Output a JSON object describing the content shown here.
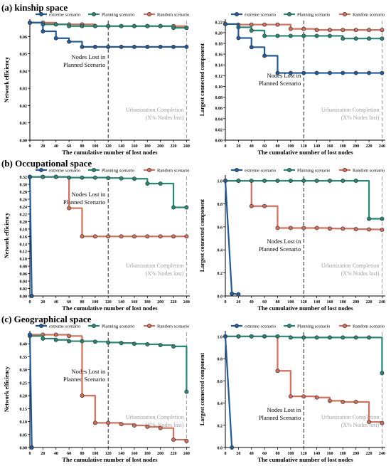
{
  "sections": [
    {
      "title": "(a) kinship space"
    },
    {
      "title": "(b) Occupational space"
    },
    {
      "title": "(c) Geographical space"
    }
  ],
  "colors": {
    "extreme": "#1f5a9e",
    "planning": "#238b72",
    "random": "#d86d5a"
  },
  "chart_data": [
    {
      "type": "line",
      "id": "a-left",
      "xlabel": "The cumulative number of lost nodes",
      "ylabel": "Network efficiency",
      "xlim": [
        0,
        245
      ],
      "ylim": [
        0,
        0.07
      ],
      "xticks": [
        0,
        20,
        40,
        60,
        80,
        100,
        120,
        140,
        160,
        180,
        200,
        220,
        240
      ],
      "yticks": [
        0,
        0.01,
        0.02,
        0.03,
        0.04,
        0.05,
        0.06
      ],
      "ytick_labels": [
        "0.00",
        "0.01",
        "0.02",
        "0.03",
        "0.04",
        "0.05",
        "0.06"
      ],
      "legend": [
        "extreme scenario",
        "Planning scenario",
        "Random scenario"
      ],
      "vline1": 120,
      "vline2": 240,
      "annotation1": [
        "Nodes Lost in",
        "Planned Scenario"
      ],
      "annotation2": [
        "Urbanization Completion",
        "(X% Nodes lost)"
      ],
      "series": [
        {
          "name": "extreme scenario",
          "key": "extreme",
          "x": [
            0,
            20,
            40,
            60,
            80,
            100,
            120,
            140,
            160,
            180,
            200,
            220,
            240
          ],
          "y": [
            0.068,
            0.063,
            0.059,
            0.057,
            0.054,
            0.054,
            0.054,
            0.054,
            0.054,
            0.054,
            0.054,
            0.054,
            0.054
          ]
        },
        {
          "name": "Planning scenario",
          "key": "planning",
          "x": [
            0,
            20,
            40,
            60,
            80,
            100,
            120,
            140,
            160,
            180,
            200,
            220,
            240
          ],
          "y": [
            0.068,
            0.067,
            0.067,
            0.066,
            0.066,
            0.066,
            0.066,
            0.066,
            0.066,
            0.066,
            0.066,
            0.065,
            0.065
          ]
        },
        {
          "name": "Random scenario",
          "key": "random",
          "x": [
            0,
            20,
            40,
            60,
            80,
            100,
            120,
            140,
            160,
            180,
            200,
            220,
            240
          ],
          "y": [
            0.068,
            0.068,
            0.067,
            0.067,
            0.067,
            0.066,
            0.066,
            0.066,
            0.066,
            0.066,
            0.066,
            0.066,
            0.065
          ]
        }
      ]
    },
    {
      "type": "line",
      "id": "a-right",
      "xlabel": "The cumulative number of lost nodes",
      "ylabel": "Largest connected component",
      "xlim": [
        0,
        245
      ],
      "ylim": [
        0,
        0.225
      ],
      "xticks": [
        0,
        20,
        40,
        60,
        80,
        100,
        120,
        140,
        160,
        180,
        200,
        220,
        240
      ],
      "yticks": [
        0,
        0.02,
        0.04,
        0.06,
        0.08,
        0.1,
        0.12,
        0.14,
        0.16,
        0.18,
        0.2,
        0.22
      ],
      "ytick_labels": [
        "0.00",
        "0.02",
        "0.04",
        "0.06",
        "0.08",
        "0.10",
        "0.12",
        "0.14",
        "0.16",
        "0.18",
        "0.20",
        "0.22"
      ],
      "legend": [
        "extreme scenario",
        "Planning scenario",
        "Random scenario"
      ],
      "vline1": 120,
      "vline2": 240,
      "annotation1": [
        "Nodes Lost in",
        "Planned Scenario"
      ],
      "annotation2": [
        "Urbanization Completion",
        "(X% Nodes lost)"
      ],
      "series": [
        {
          "name": "extreme scenario",
          "key": "extreme",
          "x": [
            0,
            20,
            40,
            60,
            80,
            100,
            120,
            140,
            160,
            180,
            200,
            220,
            240
          ],
          "y": [
            0.216,
            0.19,
            0.173,
            0.157,
            0.125,
            0.125,
            0.125,
            0.125,
            0.125,
            0.125,
            0.125,
            0.125,
            0.125
          ]
        },
        {
          "name": "Planning scenario",
          "key": "planning",
          "x": [
            0,
            20,
            40,
            60,
            80,
            100,
            120,
            140,
            160,
            180,
            200,
            220,
            240
          ],
          "y": [
            0.216,
            0.21,
            0.204,
            0.194,
            0.194,
            0.194,
            0.194,
            0.194,
            0.194,
            0.189,
            0.189,
            0.189,
            0.189
          ]
        },
        {
          "name": "Random scenario",
          "key": "random",
          "x": [
            0,
            20,
            40,
            60,
            80,
            100,
            120,
            140,
            160,
            180,
            200,
            220,
            240
          ],
          "y": [
            0.216,
            0.215,
            0.215,
            0.215,
            0.215,
            0.207,
            0.207,
            0.205,
            0.205,
            0.205,
            0.205,
            0.205,
            0.205
          ]
        }
      ]
    },
    {
      "type": "line",
      "id": "b-left",
      "xlabel": "The cumulative number of lost nodes",
      "ylabel": "Network efficiency",
      "xlim": [
        0,
        245
      ],
      "ylim": [
        0,
        0.325
      ],
      "xticks": [
        0,
        20,
        40,
        60,
        80,
        100,
        120,
        140,
        160,
        180,
        200,
        220,
        240
      ],
      "yticks": [
        0,
        0.02,
        0.04,
        0.06,
        0.08,
        0.1,
        0.12,
        0.14,
        0.16,
        0.18,
        0.2,
        0.22,
        0.24,
        0.26,
        0.28,
        0.3,
        0.32
      ],
      "ytick_labels": [
        "0.00",
        "0.02",
        "0.04",
        "0.06",
        "0.08",
        "0.10",
        "0.12",
        "0.14",
        "0.16",
        "0.18",
        "0.20",
        "0.22",
        "0.24",
        "0.26",
        "0.28",
        "0.30",
        "0.32"
      ],
      "legend": [
        "extreme scenario",
        "Planning scenario",
        "Random scenario"
      ],
      "vline1": 120,
      "vline2": 240,
      "annotation1": [
        "Nodes Lost in",
        "Planned Scenario"
      ],
      "annotation2": [
        "Urbanization Completion",
        "(X% Nodes lost)"
      ],
      "series": [
        {
          "name": "extreme scenario",
          "key": "extreme",
          "x": [
            0,
            3
          ],
          "y": [
            0.32,
            0.0
          ]
        },
        {
          "name": "Planning scenario",
          "key": "planning",
          "x": [
            0,
            20,
            40,
            60,
            80,
            100,
            120,
            140,
            160,
            180,
            200,
            220,
            240
          ],
          "y": [
            0.32,
            0.32,
            0.32,
            0.318,
            0.318,
            0.318,
            0.317,
            0.316,
            0.315,
            0.302,
            0.302,
            0.238,
            0.238
          ]
        },
        {
          "name": "Random scenario",
          "key": "random",
          "x": [
            0,
            20,
            40,
            60,
            80,
            100,
            120,
            140,
            160,
            180,
            200,
            220,
            240
          ],
          "y": [
            0.32,
            0.32,
            0.32,
            0.236,
            0.16,
            0.16,
            0.16,
            0.16,
            0.16,
            0.16,
            0.16,
            0.16,
            0.16
          ]
        }
      ]
    },
    {
      "type": "line",
      "id": "b-right",
      "xlabel": "The cumulative number of lost nodes",
      "ylabel": "Largest connected component",
      "xlim": [
        0,
        245
      ],
      "ylim": [
        0,
        1.05
      ],
      "xticks": [
        0,
        20,
        40,
        60,
        80,
        100,
        120,
        140,
        160,
        180,
        200,
        220,
        240
      ],
      "yticks": [
        0,
        0.2,
        0.4,
        0.6,
        0.8,
        1.0
      ],
      "ytick_labels": [
        "0.0",
        "0.2",
        "0.4",
        "0.6",
        "0.8",
        "1.0"
      ],
      "legend": [
        "extreme scenario",
        "Planning scenario",
        "Random scenario"
      ],
      "vline1": 120,
      "vline2": 240,
      "annotation1": [
        "Nodes Lost in",
        "Planned Scenario"
      ],
      "annotation2": [
        "Urbanization Completion",
        "(X% Nodes lost)"
      ],
      "series": [
        {
          "name": "extreme scenario",
          "key": "extreme",
          "x": [
            0,
            10,
            20
          ],
          "y": [
            1.0,
            0.02,
            0.015
          ]
        },
        {
          "name": "Planning scenario",
          "key": "planning",
          "x": [
            0,
            20,
            40,
            60,
            80,
            100,
            120,
            140,
            160,
            180,
            200,
            220,
            240
          ],
          "y": [
            1.0,
            1.0,
            1.0,
            1.0,
            1.0,
            1.0,
            1.0,
            1.0,
            1.0,
            1.0,
            1.0,
            0.67,
            0.67
          ]
        },
        {
          "name": "Random scenario",
          "key": "random",
          "x": [
            0,
            20,
            40,
            60,
            80,
            100,
            120,
            140,
            160,
            180,
            200,
            220,
            240
          ],
          "y": [
            1.0,
            1.0,
            0.78,
            0.78,
            0.59,
            0.59,
            0.59,
            0.59,
            0.585,
            0.585,
            0.58,
            0.578,
            0.575
          ]
        }
      ]
    },
    {
      "type": "line",
      "id": "c-left",
      "xlabel": "The cumulative number of lost nodes",
      "ylabel": "Network efficiency",
      "xlim": [
        0,
        245
      ],
      "ylim": [
        0,
        0.45
      ],
      "xticks": [
        0,
        20,
        40,
        60,
        80,
        100,
        120,
        140,
        160,
        180,
        200,
        220,
        240
      ],
      "yticks": [
        0,
        0.05,
        0.1,
        0.15,
        0.2,
        0.25,
        0.3,
        0.35,
        0.4
      ],
      "ytick_labels": [
        "0.00",
        "0.05",
        "0.10",
        "0.15",
        "0.20",
        "0.25",
        "0.30",
        "0.35",
        "0.40"
      ],
      "legend": [
        "extreme scenario",
        "Planning scenario",
        "Random scenario"
      ],
      "vline1": 120,
      "vline2": 240,
      "annotation1": [
        "Nodes Lost in",
        "Planned Scenario"
      ],
      "annotation2": [
        "Urbanization Completion",
        "(X% Nodes lost)"
      ],
      "series": [
        {
          "name": "extreme scenario",
          "key": "extreme",
          "x": [
            0,
            3
          ],
          "y": [
            0.435,
            0.0
          ]
        },
        {
          "name": "Planning scenario",
          "key": "planning",
          "x": [
            0,
            20,
            40,
            60,
            80,
            100,
            120,
            140,
            160,
            180,
            200,
            220,
            240
          ],
          "y": [
            0.43,
            0.42,
            0.415,
            0.41,
            0.41,
            0.408,
            0.405,
            0.403,
            0.4,
            0.398,
            0.395,
            0.39,
            0.215
          ]
        },
        {
          "name": "Random scenario",
          "key": "random",
          "x": [
            0,
            20,
            40,
            60,
            80,
            100,
            120,
            140,
            160,
            180,
            200,
            220,
            240
          ],
          "y": [
            0.435,
            0.435,
            0.435,
            0.43,
            0.2,
            0.095,
            0.095,
            0.09,
            0.085,
            0.08,
            0.075,
            0.03,
            0.025
          ]
        }
      ]
    },
    {
      "type": "line",
      "id": "c-right",
      "xlabel": "The cumulative number of lost nodes",
      "ylabel": "Largest connected component",
      "xlim": [
        0,
        245
      ],
      "ylim": [
        0,
        1.05
      ],
      "xticks": [
        0,
        20,
        40,
        60,
        80,
        100,
        120,
        140,
        160,
        180,
        200,
        220,
        240
      ],
      "yticks": [
        0,
        0.2,
        0.4,
        0.6,
        0.8,
        1.0
      ],
      "ytick_labels": [
        "0.0",
        "0.2",
        "0.4",
        "0.6",
        "0.8",
        "1.0"
      ],
      "legend": [
        "extreme scenario",
        "Planning scenario",
        "Random scenario"
      ],
      "vline1": 120,
      "vline2": 240,
      "annotation1": [
        "Nodes Lost in",
        "Planned Scenario"
      ],
      "annotation2": [
        "Urbanization Completion",
        "(X% Nodes lost)"
      ],
      "series": [
        {
          "name": "extreme scenario",
          "key": "extreme",
          "x": [
            0,
            10
          ],
          "y": [
            1.0,
            0.0
          ]
        },
        {
          "name": "Planning scenario",
          "key": "planning",
          "x": [
            0,
            20,
            40,
            60,
            80,
            100,
            120,
            140,
            160,
            180,
            200,
            220,
            240
          ],
          "y": [
            1.0,
            1.0,
            1.0,
            1.0,
            1.0,
            0.99,
            0.99,
            0.99,
            0.99,
            0.99,
            0.99,
            0.99,
            0.67
          ]
        },
        {
          "name": "Random scenario",
          "key": "random",
          "x": [
            0,
            20,
            40,
            60,
            80,
            100,
            120,
            140,
            160,
            180,
            200,
            220,
            240
          ],
          "y": [
            1.0,
            1.0,
            1.0,
            1.0,
            0.69,
            0.46,
            0.46,
            0.45,
            0.42,
            0.41,
            0.41,
            0.23,
            0.22
          ]
        }
      ]
    }
  ]
}
